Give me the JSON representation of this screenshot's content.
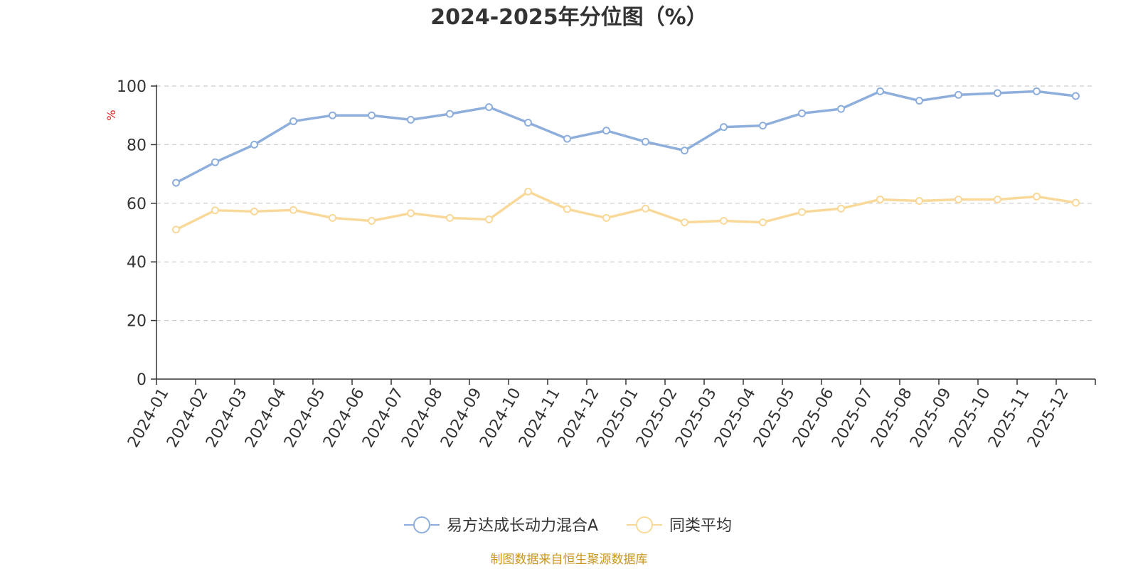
{
  "chart_data": {
    "type": "line",
    "title": "2024-2025年分位图（%）",
    "ylabel": "%",
    "xlabel": "",
    "ylim": [
      0,
      100
    ],
    "yticks": [
      0,
      20,
      40,
      60,
      80,
      100
    ],
    "grid": true,
    "legend_position": "bottom",
    "categories": [
      "2024-01",
      "2024-02",
      "2024-03",
      "2024-04",
      "2024-05",
      "2024-06",
      "2024-07",
      "2024-08",
      "2024-09",
      "2024-10",
      "2024-11",
      "2024-12",
      "2025-01",
      "2025-02",
      "2025-03",
      "2025-04",
      "2025-05",
      "2025-06",
      "2025-07",
      "2025-08",
      "2025-09",
      "2025-10",
      "2025-11",
      "2025-12"
    ],
    "series": [
      {
        "name": "易方达成长动力混合A",
        "color": "#8eaedb",
        "values": [
          67,
          74,
          80,
          88,
          90,
          90,
          88.5,
          90.5,
          92.8,
          87.5,
          82,
          84.8,
          81,
          78,
          86,
          86.5,
          90.7,
          92.2,
          98.2,
          95,
          97,
          97.6,
          98.2,
          96.6
        ]
      },
      {
        "name": "同类平均",
        "color": "#f9d99a",
        "values": [
          51,
          57.6,
          57.2,
          57.7,
          55,
          54,
          56.6,
          55,
          54.5,
          64,
          58,
          55,
          58.2,
          53.5,
          54,
          53.5,
          57,
          58.2,
          61.3,
          60.8,
          61.3,
          61.3,
          62.3,
          60.2
        ]
      }
    ]
  },
  "source_text": "制图数据来自恒生聚源数据库",
  "colors": {
    "axis": "#333333",
    "grid": "#cccccc",
    "unit_label": "#e02020",
    "source": "#c8961e"
  }
}
